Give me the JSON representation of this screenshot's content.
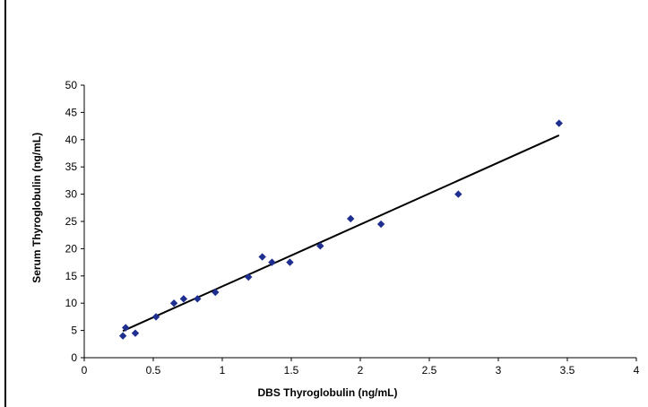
{
  "chart_data": {
    "type": "scatter",
    "title": "",
    "xlabel": "DBS Thyroglobulin (ng/mL)",
    "ylabel": "Serum Thyroglobulin (ng/mL)",
    "xlim": [
      0,
      4
    ],
    "ylim": [
      0,
      50
    ],
    "x_ticks": [
      0,
      0.5,
      1,
      1.5,
      2,
      2.5,
      3,
      3.5,
      4
    ],
    "x_tick_labels": [
      "0",
      "0.5",
      "1",
      "1.5",
      "2",
      "2.5",
      "3",
      "3.5",
      "4"
    ],
    "y_ticks": [
      0,
      5,
      10,
      15,
      20,
      25,
      30,
      35,
      40,
      45,
      50
    ],
    "y_tick_labels": [
      "0",
      "5",
      "10",
      "15",
      "20",
      "25",
      "30",
      "35",
      "40",
      "45",
      "50"
    ],
    "grid": false,
    "legend": "none",
    "colors": {
      "points": "#1f2f8f",
      "fit_line": "#000000",
      "axes": "#000000"
    },
    "series": [
      {
        "points": [
          {
            "x": 0.28,
            "y": 4.0
          },
          {
            "x": 0.3,
            "y": 5.5
          },
          {
            "x": 0.37,
            "y": 4.5
          },
          {
            "x": 0.52,
            "y": 7.5
          },
          {
            "x": 0.65,
            "y": 10.0
          },
          {
            "x": 0.72,
            "y": 10.8
          },
          {
            "x": 0.82,
            "y": 10.8
          },
          {
            "x": 0.95,
            "y": 12.0
          },
          {
            "x": 1.19,
            "y": 14.8
          },
          {
            "x": 1.29,
            "y": 18.5
          },
          {
            "x": 1.36,
            "y": 17.5
          },
          {
            "x": 1.49,
            "y": 17.5
          },
          {
            "x": 1.71,
            "y": 20.5
          },
          {
            "x": 1.93,
            "y": 25.5
          },
          {
            "x": 2.15,
            "y": 24.5
          },
          {
            "x": 2.71,
            "y": 30.0
          },
          {
            "x": 3.44,
            "y": 43.0
          }
        ]
      }
    ],
    "trendline": {
      "type": "linear",
      "x": [
        0.28,
        3.44
      ],
      "y": [
        4.9,
        40.8
      ]
    }
  }
}
